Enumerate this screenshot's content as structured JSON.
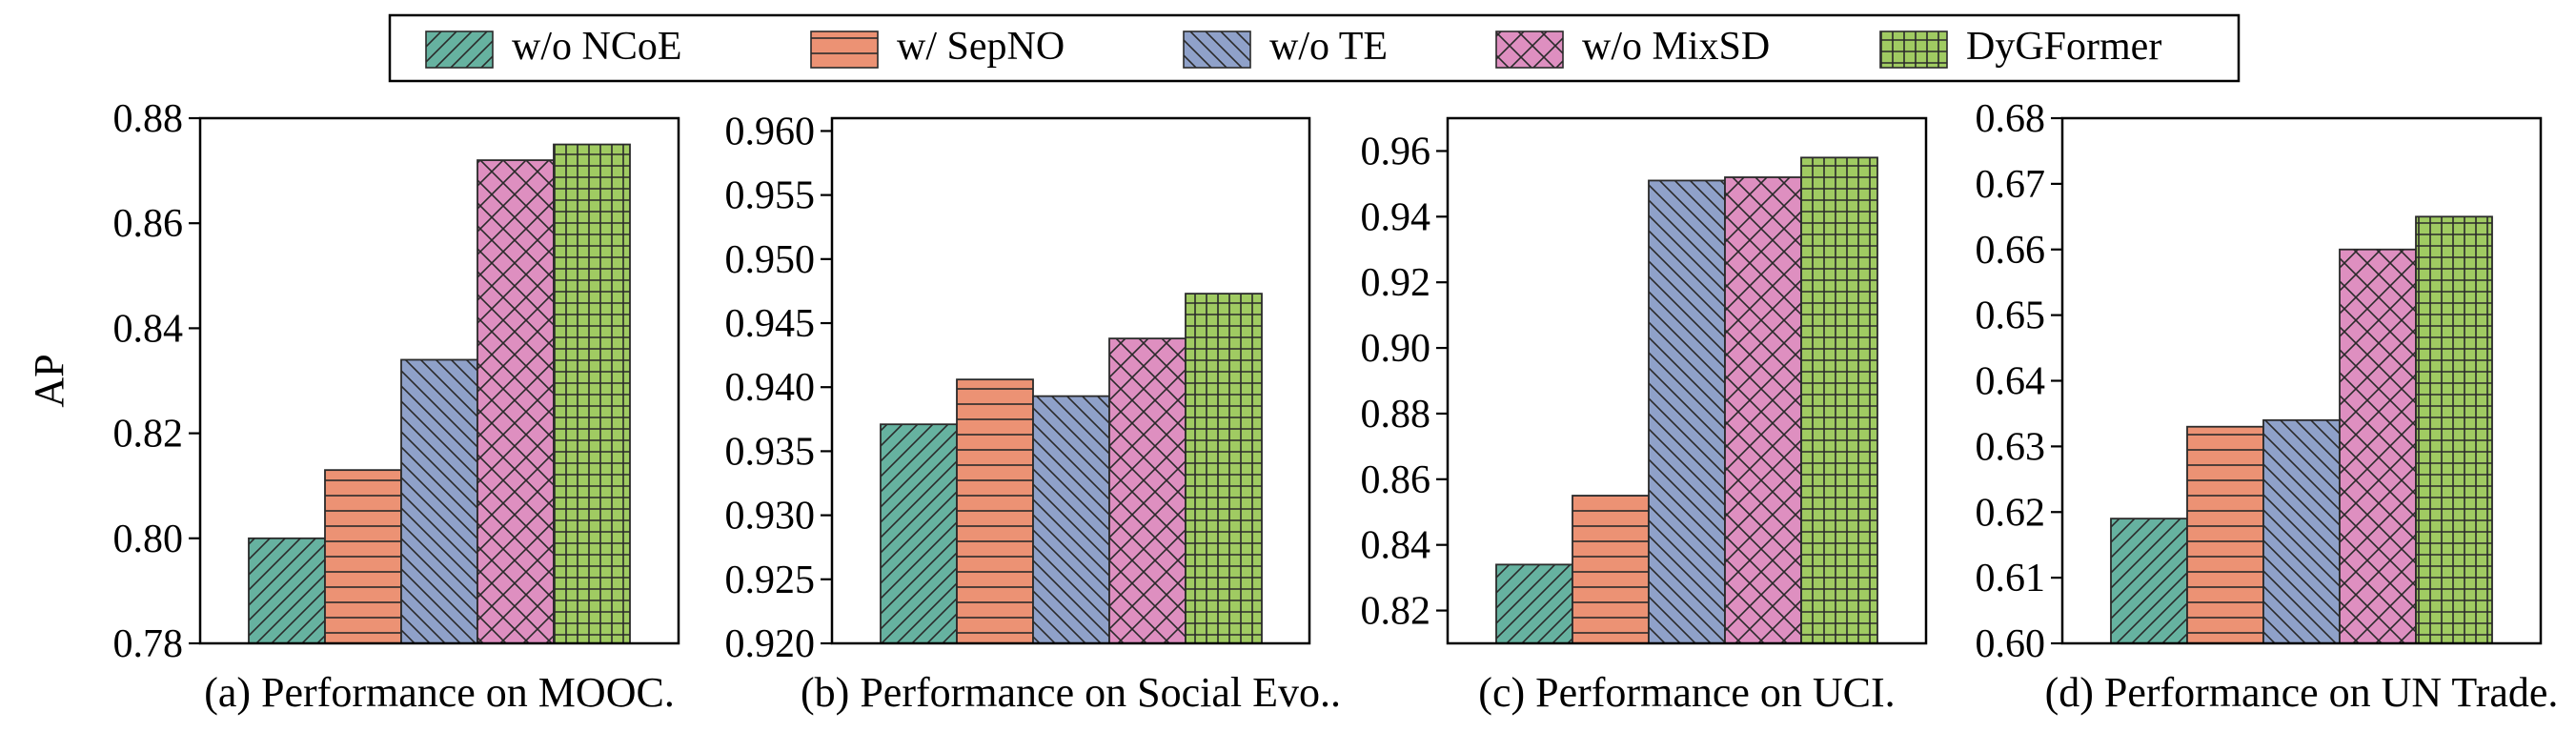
{
  "legend": {
    "entries": [
      {
        "key": "wo_ncoe",
        "label": "w/o NCoE",
        "color": "#66b2a0",
        "pattern": "diag-ne"
      },
      {
        "key": "w_sepno",
        "label": "w/ SepNO",
        "color": "#ec9274",
        "pattern": "horiz"
      },
      {
        "key": "wo_te",
        "label": "w/o TE",
        "color": "#8fa1c9",
        "pattern": "diag-nw"
      },
      {
        "key": "wo_mixsd",
        "label": "w/o MixSD",
        "color": "#de8fc0",
        "pattern": "cross-diag"
      },
      {
        "key": "dygformer",
        "label": "DyGFormer",
        "color": "#a0cb62",
        "pattern": "grid"
      }
    ]
  },
  "chart_data": [
    {
      "type": "bar",
      "title": "(a) Performance on MOOC.",
      "ylabel": "AP",
      "xlabel": "",
      "ylim": [
        0.78,
        0.88
      ],
      "yticks": [
        "0.78",
        "0.80",
        "0.82",
        "0.84",
        "0.86",
        "0.88"
      ],
      "categories": [
        "w/o NCoE",
        "w/ SepNO",
        "w/o TE",
        "w/o MixSD",
        "DyGFormer"
      ],
      "values": [
        0.8,
        0.813,
        0.834,
        0.872,
        0.875
      ]
    },
    {
      "type": "bar",
      "title": "(b) Performance on Social Evo..",
      "ylabel": "",
      "xlabel": "",
      "ylim": [
        0.92,
        0.961
      ],
      "yticks": [
        "0.920",
        "0.925",
        "0.930",
        "0.935",
        "0.940",
        "0.945",
        "0.950",
        "0.955",
        "0.960"
      ],
      "categories": [
        "w/o NCoE",
        "w/ SepNO",
        "w/o TE",
        "w/o MixSD",
        "DyGFormer"
      ],
      "values": [
        0.9371,
        0.9406,
        0.9393,
        0.9438,
        0.9473
      ]
    },
    {
      "type": "bar",
      "title": "(c) Performance on UCI.",
      "ylabel": "",
      "xlabel": "",
      "ylim": [
        0.81,
        0.97
      ],
      "yticks": [
        "0.82",
        "0.84",
        "0.86",
        "0.88",
        "0.90",
        "0.92",
        "0.94",
        "0.96"
      ],
      "categories": [
        "w/o NCoE",
        "w/ SepNO",
        "w/o TE",
        "w/o MixSD",
        "DyGFormer"
      ],
      "values": [
        0.834,
        0.855,
        0.951,
        0.952,
        0.958
      ]
    },
    {
      "type": "bar",
      "title": "(d) Performance on UN Trade.",
      "ylabel": "",
      "xlabel": "",
      "ylim": [
        0.6,
        0.68
      ],
      "yticks": [
        "0.60",
        "0.61",
        "0.62",
        "0.63",
        "0.64",
        "0.65",
        "0.66",
        "0.67",
        "0.68"
      ],
      "categories": [
        "w/o NCoE",
        "w/ SepNO",
        "w/o TE",
        "w/o MixSD",
        "DyGFormer"
      ],
      "values": [
        0.619,
        0.633,
        0.634,
        0.66,
        0.665
      ]
    }
  ]
}
